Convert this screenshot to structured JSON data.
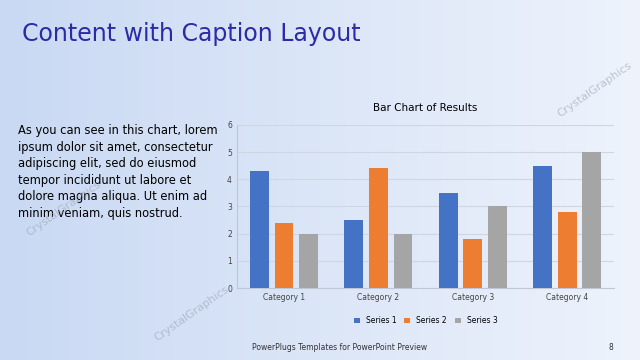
{
  "slide": {
    "title": "Content with Caption Layout",
    "caption_lines": [
      "As you can see in this chart, lorem",
      "ipsum dolor sit amet, consectetur",
      "adipiscing elit, sed do eiusmod",
      "tempor incididunt ut labore et",
      "dolore magna aliqua. Ut enim ad",
      "minim veniam, quis nostrud."
    ],
    "footer": "PowerPlugs Templates for PowerPoint Preview",
    "page": 8,
    "watermark": "CrystalGraphics"
  },
  "chart_data": {
    "type": "bar",
    "title": "Bar Chart of Results",
    "categories": [
      "Category 1",
      "Category 2",
      "Category 3",
      "Category 4"
    ],
    "series": [
      {
        "name": "Series 1",
        "color": "#4472c4",
        "values": [
          4.3,
          2.5,
          3.5,
          4.5
        ]
      },
      {
        "name": "Series 2",
        "color": "#ed7d31",
        "values": [
          2.4,
          4.4,
          1.8,
          2.8
        ]
      },
      {
        "name": "Series 3",
        "color": "#a5a5a5",
        "values": [
          2.0,
          2.0,
          3.0,
          5.0
        ]
      }
    ],
    "ylim": [
      0,
      6
    ],
    "yticks": [
      0,
      1,
      2,
      3,
      4,
      5,
      6
    ],
    "grid": true,
    "legend": "lower center"
  }
}
